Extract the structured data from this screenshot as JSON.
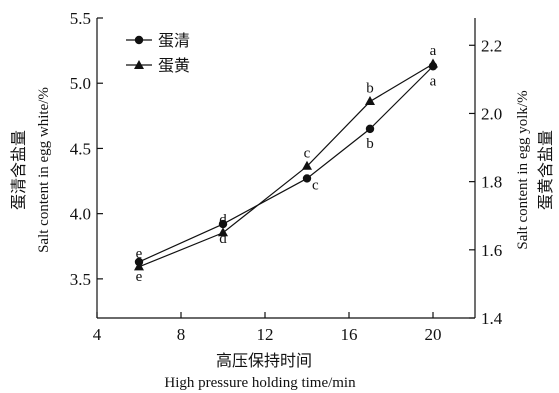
{
  "chart_data": {
    "type": "line",
    "x": [
      6,
      10,
      14,
      17,
      20
    ],
    "xlabel_cn": "高压保持时间",
    "xlabel_en": "High pressure holding time/min",
    "ylabel_left_cn": "蛋清含盐量",
    "ylabel_left_en": "Salt content in egg white/%",
    "ylabel_right_cn": "蛋黄含盐量",
    "ylabel_right_en": "Salt content in egg yolk/%",
    "xlim": [
      4,
      22
    ],
    "xticks": [
      4,
      8,
      12,
      16,
      20
    ],
    "ylim_left": [
      3.2,
      5.5
    ],
    "yticks_left": [
      3.5,
      4.0,
      4.5,
      5.0,
      5.5
    ],
    "ylim_right": [
      1.4,
      2.28
    ],
    "yticks_right": [
      1.4,
      1.6,
      1.8,
      2.0,
      2.2
    ],
    "tick_format": "one-decimal",
    "legend_position": "top-left",
    "grid": false,
    "series": [
      {
        "name": "蛋清",
        "axis": "left",
        "marker": "circle",
        "values": [
          3.63,
          3.92,
          4.27,
          4.65,
          5.13
        ],
        "labels": [
          "e",
          "d",
          "c",
          "b",
          "a"
        ],
        "label_side": [
          "below",
          "below",
          "right",
          "below",
          "below"
        ]
      },
      {
        "name": "蛋黄",
        "axis": "right",
        "marker": "triangle",
        "values": [
          1.55,
          1.65,
          1.845,
          2.035,
          2.145
        ],
        "labels": [
          "e",
          "d",
          "c",
          "b",
          "a"
        ],
        "label_side": [
          "above",
          "above",
          "above",
          "above",
          "above"
        ]
      }
    ],
    "colors": {
      "line": "#111111",
      "marker": "#111111"
    }
  }
}
